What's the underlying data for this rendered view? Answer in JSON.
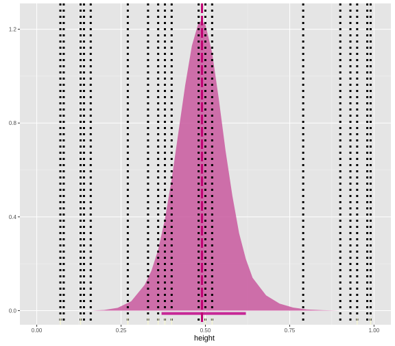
{
  "chart_data": {
    "type": "area",
    "title": "",
    "xlabel": "height",
    "ylabel": "",
    "xlim": [
      -0.05,
      1.05
    ],
    "ylim": [
      -0.06,
      1.31
    ],
    "x_ticks": [
      0.0,
      0.25,
      0.5,
      0.75,
      1.0
    ],
    "x_tick_labels": [
      "0.00",
      "0.25",
      "0.50",
      "0.75",
      "1.00"
    ],
    "y_ticks": [
      0.0,
      0.4,
      0.8,
      1.2
    ],
    "y_tick_labels": [
      "0.0",
      "0.4",
      "0.8",
      "1.2"
    ],
    "grid": true,
    "density": {
      "name": "",
      "color": "#c9599f",
      "x": [
        0.16,
        0.2,
        0.24,
        0.28,
        0.32,
        0.34,
        0.36,
        0.38,
        0.4,
        0.42,
        0.44,
        0.46,
        0.48,
        0.49,
        0.5,
        0.52,
        0.54,
        0.56,
        0.58,
        0.6,
        0.62,
        0.64,
        0.68,
        0.72,
        0.76,
        0.8,
        0.85,
        0.9
      ],
      "y": [
        0.0,
        0.003,
        0.012,
        0.04,
        0.11,
        0.17,
        0.26,
        0.39,
        0.56,
        0.76,
        0.96,
        1.13,
        1.23,
        1.235,
        1.22,
        1.1,
        0.9,
        0.68,
        0.49,
        0.33,
        0.22,
        0.14,
        0.065,
        0.03,
        0.013,
        0.005,
        0.002,
        0.0
      ]
    },
    "interval": {
      "low": 0.37,
      "high": 0.62,
      "color": "#c62896"
    },
    "point_estimate": {
      "x": 0.49,
      "color": "#c00072"
    },
    "observations": [
      0.07,
      0.08,
      0.13,
      0.14,
      0.16,
      0.27,
      0.33,
      0.36,
      0.38,
      0.4,
      0.48,
      0.5,
      0.52,
      0.79,
      0.9,
      0.93,
      0.95,
      0.98,
      0.99
    ],
    "observation_color": "#000000",
    "rug": [
      0.07,
      0.13,
      0.27,
      0.33,
      0.36,
      0.38,
      0.4,
      0.5,
      0.52,
      0.95,
      0.99
    ],
    "rug_color": "#f5f5d2"
  }
}
